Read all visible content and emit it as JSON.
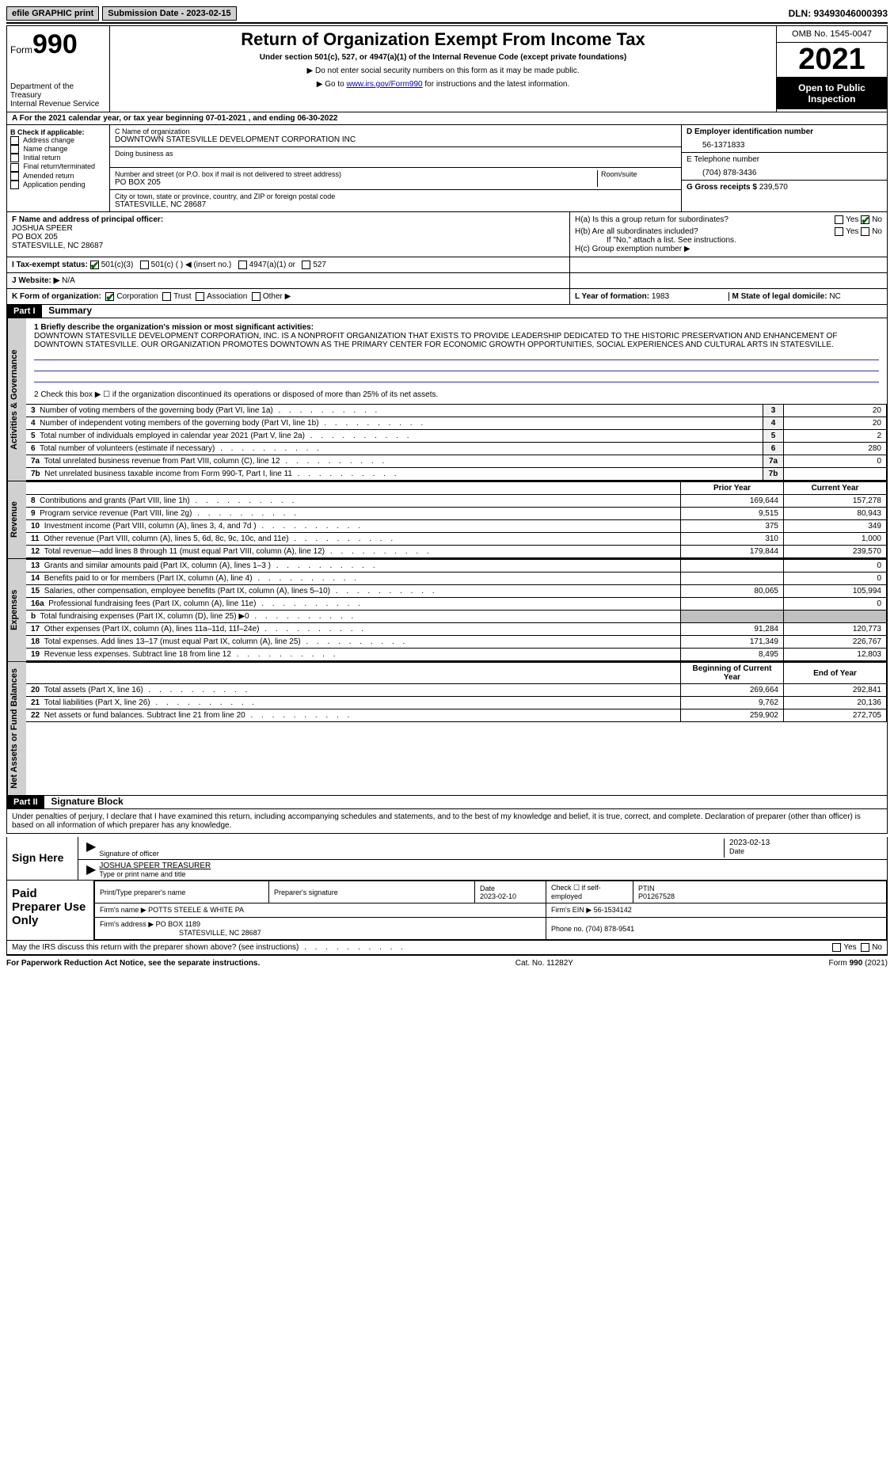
{
  "topbar": {
    "efile_label": "efile GRAPHIC print",
    "submission_label": "Submission Date - 2023-02-15",
    "dln": "DLN: 93493046000393"
  },
  "header": {
    "form_label": "Form",
    "form_num": "990",
    "dept": "Department of the Treasury",
    "irs": "Internal Revenue Service",
    "title": "Return of Organization Exempt From Income Tax",
    "subtitle": "Under section 501(c), 527, or 4947(a)(1) of the Internal Revenue Code (except private foundations)",
    "note1": "Do not enter social security numbers on this form as it may be made public.",
    "note2_pre": "Go to ",
    "note2_link": "www.irs.gov/Form990",
    "note2_post": " for instructions and the latest information.",
    "omb": "OMB No. 1545-0047",
    "year": "2021",
    "open": "Open to Public Inspection"
  },
  "row_a": "A For the 2021 calendar year, or tax year beginning 07-01-2021    , and ending 06-30-2022",
  "col_b": {
    "title": "B Check if applicable:",
    "items": [
      "Address change",
      "Name change",
      "Initial return",
      "Final return/terminated",
      "Amended return",
      "Application pending"
    ]
  },
  "col_c": {
    "name_label": "C Name of organization",
    "org_name": "DOWNTOWN STATESVILLE DEVELOPMENT CORPORATION INC",
    "dba_label": "Doing business as",
    "addr_label": "Number and street (or P.O. box if mail is not delivered to street address)",
    "room_label": "Room/suite",
    "addr": "PO BOX 205",
    "city_label": "City or town, state or province, country, and ZIP or foreign postal code",
    "city": "STATESVILLE, NC  28687"
  },
  "col_d": {
    "ein_label": "D Employer identification number",
    "ein": "56-1371833",
    "phone_label": "E Telephone number",
    "phone": "(704) 878-3436",
    "gross_label": "G Gross receipts $",
    "gross": "239,570"
  },
  "officer": {
    "label": "F  Name and address of principal officer:",
    "name": "JOSHUA SPEER",
    "addr1": "PO BOX 205",
    "addr2": "STATESVILLE, NC  28687"
  },
  "h": {
    "a": "H(a)  Is this a group return for subordinates?",
    "b": "H(b)  Are all subordinates included?",
    "b_note": "If \"No,\" attach a list. See instructions.",
    "c": "H(c)  Group exemption number ▶",
    "yes": "Yes",
    "no": "No"
  },
  "i": {
    "label": "I  Tax-exempt status:",
    "o1": "501(c)(3)",
    "o2": "501(c) (  ) ◀ (insert no.)",
    "o3": "4947(a)(1) or",
    "o4": "527"
  },
  "j": {
    "label": "J  Website: ▶",
    "val": "N/A"
  },
  "k": {
    "label": "K Form of organization:",
    "corp": "Corporation",
    "trust": "Trust",
    "assoc": "Association",
    "other": "Other ▶"
  },
  "l": {
    "label": "L Year of formation:",
    "val": "1983"
  },
  "m": {
    "label": "M State of legal domicile:",
    "val": "NC"
  },
  "part1": {
    "hdr": "Part I",
    "title": "Summary",
    "mission_label": "1  Briefly describe the organization's mission or most significant activities:",
    "mission": "DOWNTOWN STATESVILLE DEVELOPMENT CORPORATION, INC. IS A NONPROFIT ORGANIZATION THAT EXISTS TO PROVIDE LEADERSHIP DEDICATED TO THE HISTORIC PRESERVATION AND ENHANCEMENT OF DOWNTOWN STATESVILLE. OUR ORGANIZATION PROMOTES DOWNTOWN AS THE PRIMARY CENTER FOR ECONOMIC GROWTH OPPORTUNITIES, SOCIAL EXPERIENCES AND CULTURAL ARTS IN STATESVILLE.",
    "line2": "2    Check this box ▶ ☐  if the organization discontinued its operations or disposed of more than 25% of its net assets.",
    "vlabels": {
      "ag": "Activities & Governance",
      "rev": "Revenue",
      "exp": "Expenses",
      "na": "Net Assets or Fund Balances"
    },
    "rows_ag": [
      {
        "n": "3",
        "d": "Number of voting members of the governing body (Part VI, line 1a)",
        "v": "20"
      },
      {
        "n": "4",
        "d": "Number of independent voting members of the governing body (Part VI, line 1b)",
        "v": "20"
      },
      {
        "n": "5",
        "d": "Total number of individuals employed in calendar year 2021 (Part V, line 2a)",
        "v": "2"
      },
      {
        "n": "6",
        "d": "Total number of volunteers (estimate if necessary)",
        "v": "280"
      },
      {
        "n": "7a",
        "d": "Total unrelated business revenue from Part VIII, column (C), line 12",
        "v": "0"
      },
      {
        "n": "7b",
        "d": "Net unrelated business taxable income from Form 990-T, Part I, line 11",
        "v": ""
      }
    ],
    "col_hdrs": {
      "prior": "Prior Year",
      "curr": "Current Year"
    },
    "rows_rev": [
      {
        "n": "8",
        "d": "Contributions and grants (Part VIII, line 1h)",
        "p": "169,644",
        "c": "157,278"
      },
      {
        "n": "9",
        "d": "Program service revenue (Part VIII, line 2g)",
        "p": "9,515",
        "c": "80,943"
      },
      {
        "n": "10",
        "d": "Investment income (Part VIII, column (A), lines 3, 4, and 7d )",
        "p": "375",
        "c": "349"
      },
      {
        "n": "11",
        "d": "Other revenue (Part VIII, column (A), lines 5, 6d, 8c, 9c, 10c, and 11e)",
        "p": "310",
        "c": "1,000"
      },
      {
        "n": "12",
        "d": "Total revenue—add lines 8 through 11 (must equal Part VIII, column (A), line 12)",
        "p": "179,844",
        "c": "239,570"
      }
    ],
    "rows_exp": [
      {
        "n": "13",
        "d": "Grants and similar amounts paid (Part IX, column (A), lines 1–3 )",
        "p": "",
        "c": "0"
      },
      {
        "n": "14",
        "d": "Benefits paid to or for members (Part IX, column (A), line 4)",
        "p": "",
        "c": "0"
      },
      {
        "n": "15",
        "d": "Salaries, other compensation, employee benefits (Part IX, column (A), lines 5–10)",
        "p": "80,065",
        "c": "105,994"
      },
      {
        "n": "16a",
        "d": "Professional fundraising fees (Part IX, column (A), line 11e)",
        "p": "",
        "c": "0"
      },
      {
        "n": "b",
        "d": "Total fundraising expenses (Part IX, column (D), line 25) ▶0",
        "p": "grey",
        "c": "grey"
      },
      {
        "n": "17",
        "d": "Other expenses (Part IX, column (A), lines 11a–11d, 11f–24e)",
        "p": "91,284",
        "c": "120,773"
      },
      {
        "n": "18",
        "d": "Total expenses. Add lines 13–17 (must equal Part IX, column (A), line 25)",
        "p": "171,349",
        "c": "226,767"
      },
      {
        "n": "19",
        "d": "Revenue less expenses. Subtract line 18 from line 12",
        "p": "8,495",
        "c": "12,803"
      }
    ],
    "col_hdrs2": {
      "beg": "Beginning of Current Year",
      "end": "End of Year"
    },
    "rows_na": [
      {
        "n": "20",
        "d": "Total assets (Part X, line 16)",
        "p": "269,664",
        "c": "292,841"
      },
      {
        "n": "21",
        "d": "Total liabilities (Part X, line 26)",
        "p": "9,762",
        "c": "20,136"
      },
      {
        "n": "22",
        "d": "Net assets or fund balances. Subtract line 21 from line 20",
        "p": "259,902",
        "c": "272,705"
      }
    ]
  },
  "part2": {
    "hdr": "Part II",
    "title": "Signature Block",
    "decl": "Under penalties of perjury, I declare that I have examined this return, including accompanying schedules and statements, and to the best of my knowledge and belief, it is true, correct, and complete. Declaration of preparer (other than officer) is based on all information of which preparer has any knowledge.",
    "sign_here": "Sign Here",
    "sig_officer": "Signature of officer",
    "sig_date": "2023-02-13",
    "date_lbl": "Date",
    "officer_name": "JOSHUA SPEER TREASURER",
    "type_name": "Type or print name and title",
    "paid": "Paid Preparer Use Only",
    "prep_name_lbl": "Print/Type preparer's name",
    "prep_sig_lbl": "Preparer's signature",
    "prep_date_lbl": "Date",
    "prep_date": "2023-02-10",
    "check_self": "Check ☐ if self-employed",
    "ptin_lbl": "PTIN",
    "ptin": "P01267528",
    "firm_name_lbl": "Firm's name    ▶",
    "firm_name": "POTTS STEELE & WHITE PA",
    "firm_ein_lbl": "Firm's EIN ▶",
    "firm_ein": "56-1534142",
    "firm_addr_lbl": "Firm's address ▶",
    "firm_addr": "PO BOX 1189",
    "firm_city": "STATESVILLE, NC  28687",
    "firm_phone_lbl": "Phone no.",
    "firm_phone": "(704) 878-9541",
    "may_irs": "May the IRS discuss this return with the preparer shown above? (see instructions)",
    "yes": "Yes",
    "no": "No"
  },
  "footer": {
    "left": "For Paperwork Reduction Act Notice, see the separate instructions.",
    "mid": "Cat. No. 11282Y",
    "right": "Form 990 (2021)"
  }
}
